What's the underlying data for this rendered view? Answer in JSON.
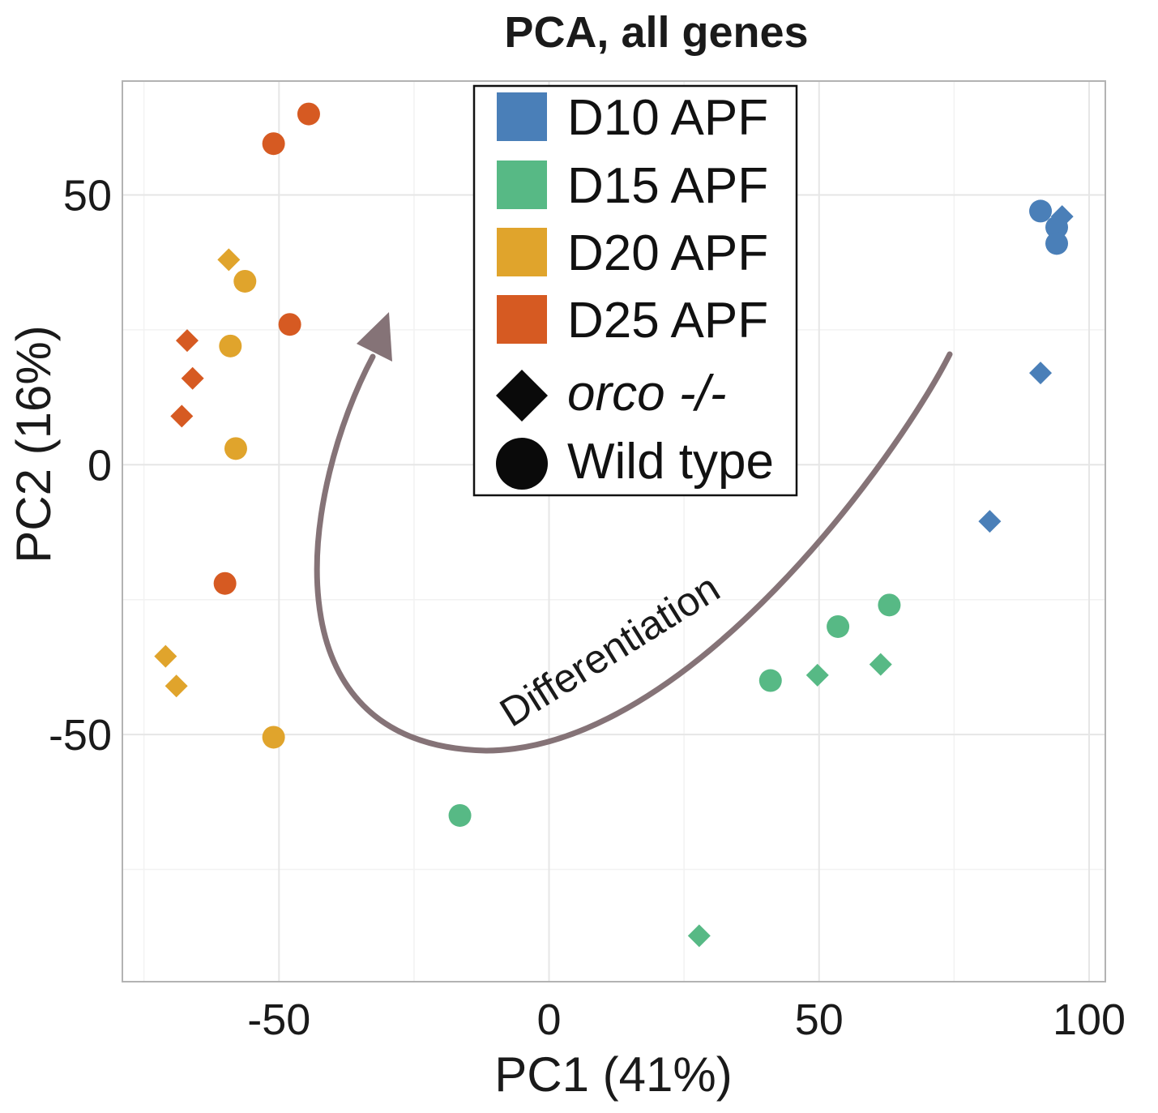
{
  "chart_data": {
    "type": "scatter",
    "title": "PCA, all genes",
    "xlabel": "PC1 (41%)",
    "ylabel": "PC2 (16%)",
    "xlim": [
      -79,
      103
    ],
    "ylim": [
      -95.8,
      71.1
    ],
    "x_ticks": [
      -50,
      0,
      50,
      100
    ],
    "x_tick_labels": [
      "-50",
      "0",
      "50",
      "100"
    ],
    "y_ticks": [
      -50,
      0,
      50
    ],
    "y_tick_labels": [
      "-50",
      "0",
      "50"
    ],
    "grid": true,
    "legend": {
      "placement": "top-center",
      "entries": [
        {
          "label": "D10 APF",
          "kind": "color",
          "color": "#4a7fb8"
        },
        {
          "label": "D15 APF",
          "kind": "color",
          "color": "#57b985"
        },
        {
          "label": "D20 APF",
          "kind": "color",
          "color": "#e0a42c"
        },
        {
          "label": "D25 APF",
          "kind": "color",
          "color": "#d65a22"
        },
        {
          "label": "orco -/-",
          "kind": "shape",
          "shape": "diamond"
        },
        {
          "label": "Wild type",
          "kind": "shape",
          "shape": "circle"
        }
      ]
    },
    "annotation": {
      "text": "Differentiation",
      "arrow_color": "#857377"
    },
    "series": [
      {
        "name": "D10 APF",
        "color": "#4a7fb8",
        "points": [
          {
            "x": 91,
            "y": 47,
            "shape": "circle"
          },
          {
            "x": 94,
            "y": 44,
            "shape": "circle"
          },
          {
            "x": 94,
            "y": 41,
            "shape": "circle"
          },
          {
            "x": 95,
            "y": 46,
            "shape": "diamond"
          },
          {
            "x": 91,
            "y": 17,
            "shape": "diamond"
          },
          {
            "x": 81.6,
            "y": -10.5,
            "shape": "diamond"
          }
        ]
      },
      {
        "name": "D15 APF",
        "color": "#57b985",
        "points": [
          {
            "x": 63,
            "y": -26,
            "shape": "circle"
          },
          {
            "x": 53.5,
            "y": -30,
            "shape": "circle"
          },
          {
            "x": 41,
            "y": -40,
            "shape": "circle"
          },
          {
            "x": 49.7,
            "y": -39,
            "shape": "diamond"
          },
          {
            "x": 61.4,
            "y": -37,
            "shape": "diamond"
          },
          {
            "x": -16.5,
            "y": -65,
            "shape": "circle"
          },
          {
            "x": 27.8,
            "y": -87.3,
            "shape": "diamond"
          }
        ]
      },
      {
        "name": "D20 APF",
        "color": "#e0a42c",
        "points": [
          {
            "x": -56.3,
            "y": 34,
            "shape": "circle"
          },
          {
            "x": -59.3,
            "y": 38,
            "shape": "diamond"
          },
          {
            "x": -59,
            "y": 22,
            "shape": "circle"
          },
          {
            "x": -58,
            "y": 3,
            "shape": "circle"
          },
          {
            "x": -71,
            "y": -35.5,
            "shape": "diamond"
          },
          {
            "x": -69,
            "y": -41,
            "shape": "diamond"
          },
          {
            "x": -51,
            "y": -50.5,
            "shape": "circle"
          }
        ]
      },
      {
        "name": "D25 APF",
        "color": "#d65a22",
        "points": [
          {
            "x": -44.5,
            "y": 65,
            "shape": "circle"
          },
          {
            "x": -51,
            "y": 59.5,
            "shape": "circle"
          },
          {
            "x": -48,
            "y": 26,
            "shape": "circle"
          },
          {
            "x": -67,
            "y": 23,
            "shape": "diamond"
          },
          {
            "x": -66,
            "y": 16,
            "shape": "diamond"
          },
          {
            "x": -68,
            "y": 9,
            "shape": "diamond"
          },
          {
            "x": -60,
            "y": -22,
            "shape": "circle"
          }
        ]
      }
    ]
  }
}
